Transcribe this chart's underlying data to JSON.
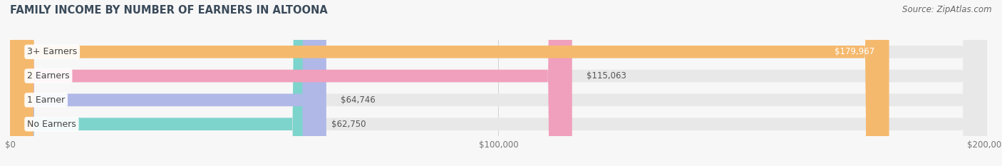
{
  "title": "FAMILY INCOME BY NUMBER OF EARNERS IN ALTOONA",
  "source": "Source: ZipAtlas.com",
  "categories": [
    "No Earners",
    "1 Earner",
    "2 Earners",
    "3+ Earners"
  ],
  "values": [
    62750,
    64746,
    115063,
    179967
  ],
  "bar_colors": [
    "#7dd4cc",
    "#b0b8e8",
    "#f0a0bc",
    "#f5b96e"
  ],
  "bar_bg_color": "#e8e8e8",
  "background_color": "#f7f7f7",
  "xlim": [
    0,
    200000
  ],
  "label_inside_color": "#ffffff",
  "label_outside_color": "#555555",
  "title_color": "#3a4a5a",
  "source_color": "#666666",
  "title_fontsize": 10.5,
  "source_fontsize": 8.5,
  "tick_fontsize": 8.5,
  "bar_label_fontsize": 8.5,
  "cat_label_fontsize": 9
}
